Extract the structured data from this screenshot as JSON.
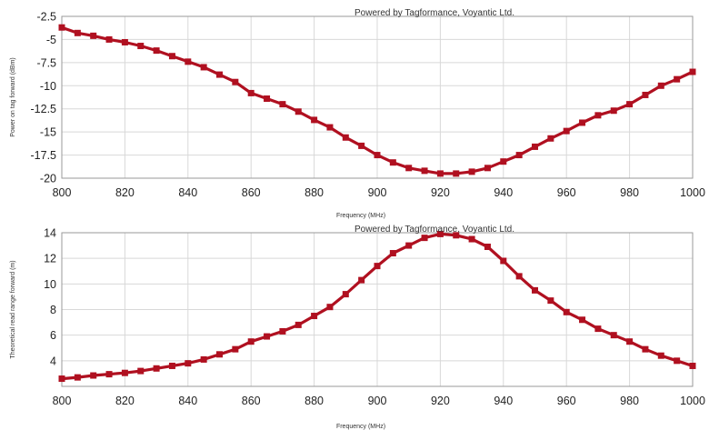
{
  "chart_data": [
    {
      "type": "line",
      "credit": "Powered by Tagformance, Voyantic Ltd.",
      "xlabel": "Frequency (MHz)",
      "ylabel": "Power on tag forward (dBm)",
      "xlim": [
        800,
        1000
      ],
      "ylim": [
        -20,
        -2.5
      ],
      "xticks": [
        "800",
        "820",
        "840",
        "860",
        "880",
        "900",
        "920",
        "940",
        "960",
        "980",
        "1000"
      ],
      "yticks": [
        "-2.5",
        "-5",
        "-7.5",
        "-10",
        "-12.5",
        "-15",
        "-17.5",
        "-20"
      ],
      "grid": true,
      "color": "#b01020",
      "x": [
        800,
        805,
        810,
        815,
        820,
        825,
        830,
        835,
        840,
        845,
        850,
        855,
        860,
        865,
        870,
        875,
        880,
        885,
        890,
        895,
        900,
        905,
        910,
        915,
        920,
        925,
        930,
        935,
        940,
        945,
        950,
        955,
        960,
        965,
        970,
        975,
        980,
        985,
        990,
        995,
        1000
      ],
      "y": [
        -3.7,
        -4.3,
        -4.6,
        -5.0,
        -5.3,
        -5.7,
        -6.2,
        -6.8,
        -7.4,
        -8.0,
        -8.8,
        -9.6,
        -10.8,
        -11.4,
        -12.0,
        -12.8,
        -13.7,
        -14.5,
        -15.6,
        -16.5,
        -17.5,
        -18.3,
        -18.9,
        -19.2,
        -19.5,
        -19.5,
        -19.3,
        -18.9,
        -18.2,
        -17.5,
        -16.6,
        -15.7,
        -14.9,
        -14.0,
        -13.2,
        -12.7,
        -12.0,
        -11.0,
        -10.0,
        -9.3,
        -8.5
      ]
    },
    {
      "type": "line",
      "credit": "Powered by Tagformance, Voyantic Ltd.",
      "xlabel": "Frequency (MHz)",
      "ylabel": "Theoretical read range forward (m)",
      "xlim": [
        800,
        1000
      ],
      "ylim": [
        2,
        14
      ],
      "xticks": [
        "800",
        "820",
        "840",
        "860",
        "880",
        "900",
        "920",
        "940",
        "960",
        "980",
        "1000"
      ],
      "yticks": [
        "14",
        "12",
        "10",
        "8",
        "6",
        "4"
      ],
      "grid": true,
      "color": "#b01020",
      "x": [
        800,
        805,
        810,
        815,
        820,
        825,
        830,
        835,
        840,
        845,
        850,
        855,
        860,
        865,
        870,
        875,
        880,
        885,
        890,
        895,
        900,
        905,
        910,
        915,
        920,
        925,
        930,
        935,
        940,
        945,
        950,
        955,
        960,
        965,
        970,
        975,
        980,
        985,
        990,
        995,
        1000
      ],
      "y": [
        2.6,
        2.7,
        2.85,
        2.95,
        3.05,
        3.2,
        3.4,
        3.6,
        3.8,
        4.1,
        4.5,
        4.9,
        5.5,
        5.9,
        6.3,
        6.8,
        7.5,
        8.2,
        9.2,
        10.3,
        11.4,
        12.4,
        13.0,
        13.6,
        13.9,
        13.8,
        13.5,
        12.9,
        11.8,
        10.6,
        9.5,
        8.7,
        7.8,
        7.2,
        6.5,
        6.0,
        5.5,
        4.9,
        4.4,
        4.0,
        3.6
      ]
    }
  ]
}
